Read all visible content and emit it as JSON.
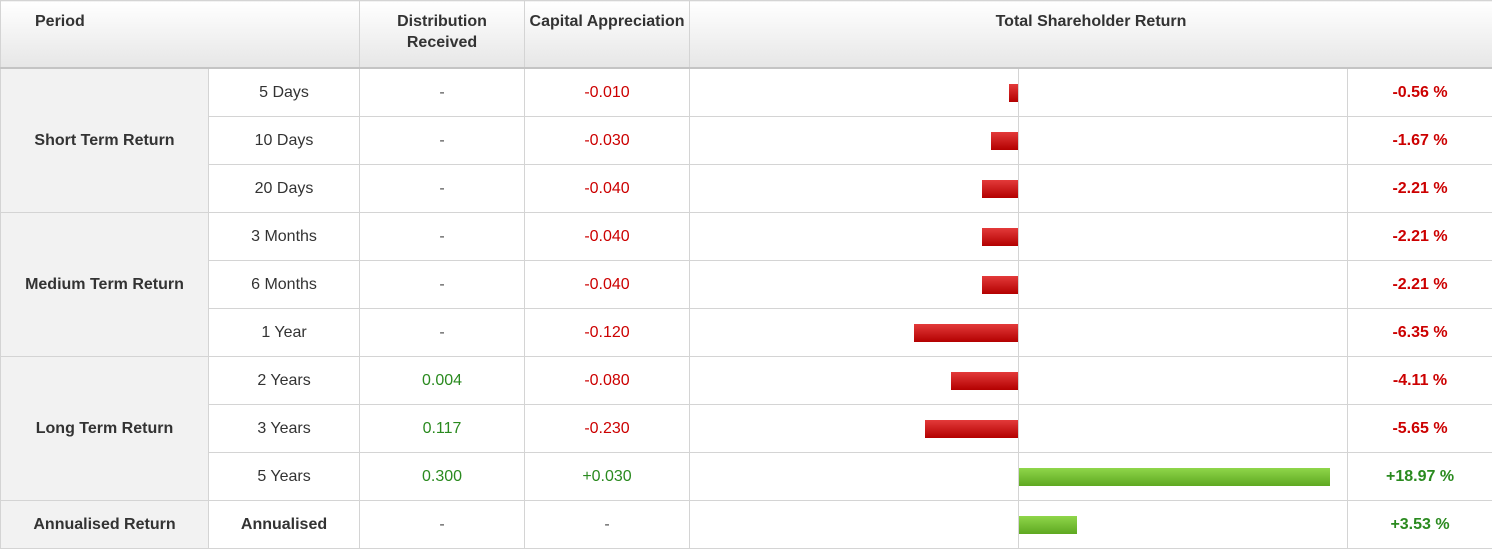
{
  "header": {
    "period": "Period",
    "distribution": "Distribution Received",
    "capital": "Capital Appreciation",
    "tsr": "Total Shareholder Return"
  },
  "groups": [
    {
      "label": "Short Term Return"
    },
    {
      "label": "Medium Term Return"
    },
    {
      "label": "Long Term Return"
    },
    {
      "label": "Annualised Return"
    }
  ],
  "rows": [
    {
      "period": "5 Days",
      "distribution": "-",
      "capital": "-0.010",
      "tsr_label": "-0.56 %",
      "tsr_value": -0.56
    },
    {
      "period": "10 Days",
      "distribution": "-",
      "capital": "-0.030",
      "tsr_label": "-1.67 %",
      "tsr_value": -1.67
    },
    {
      "period": "20 Days",
      "distribution": "-",
      "capital": "-0.040",
      "tsr_label": "-2.21 %",
      "tsr_value": -2.21
    },
    {
      "period": "3 Months",
      "distribution": "-",
      "capital": "-0.040",
      "tsr_label": "-2.21 %",
      "tsr_value": -2.21
    },
    {
      "period": "6 Months",
      "distribution": "-",
      "capital": "-0.040",
      "tsr_label": "-2.21 %",
      "tsr_value": -2.21
    },
    {
      "period": "1 Year",
      "distribution": "-",
      "capital": "-0.120",
      "tsr_label": "-6.35 %",
      "tsr_value": -6.35
    },
    {
      "period": "2 Years",
      "distribution": "0.004",
      "capital": "-0.080",
      "tsr_label": "-4.11 %",
      "tsr_value": -4.11
    },
    {
      "period": "3 Years",
      "distribution": "0.117",
      "capital": "-0.230",
      "tsr_label": "-5.65 %",
      "tsr_value": -5.65
    },
    {
      "period": "5 Years",
      "distribution": "0.300",
      "capital": "+0.030",
      "tsr_label": "+18.97 %",
      "tsr_value": 18.97
    },
    {
      "period": "Annualised",
      "distribution": "-",
      "capital": "-",
      "tsr_label": "+3.53 %",
      "tsr_value": 3.53
    }
  ],
  "colors": {
    "positive": "#2a8a1f",
    "negative": "#cc0000",
    "neutral": "#555555"
  }
}
